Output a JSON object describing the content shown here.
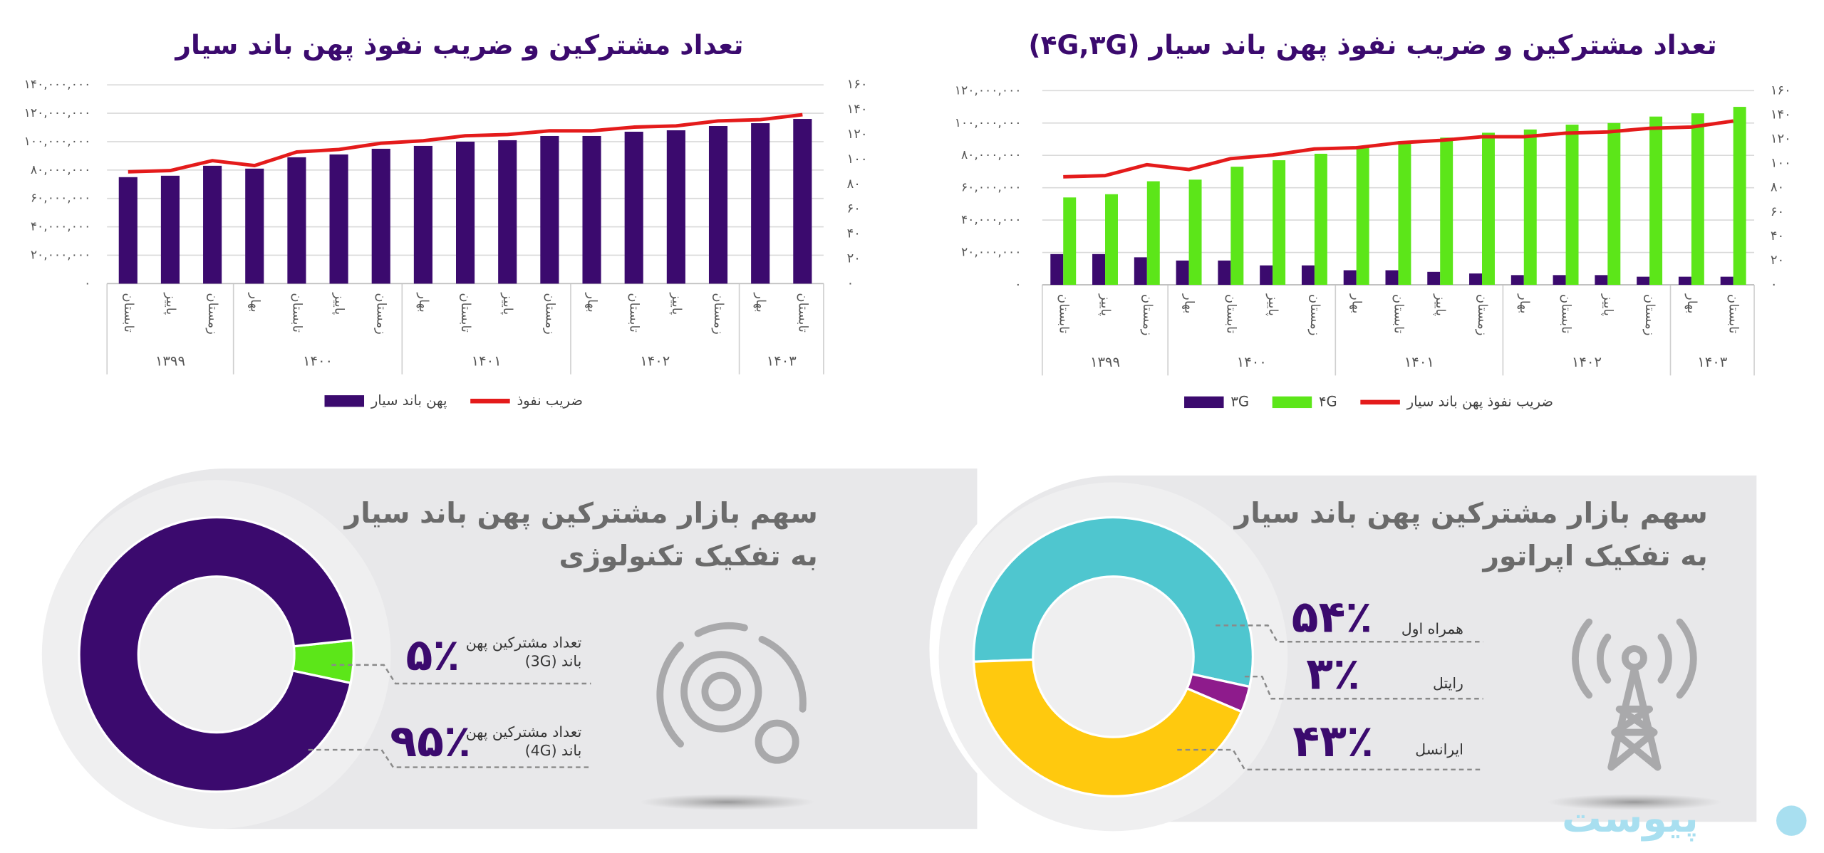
{
  "chart_data": [
    {
      "type": "bar",
      "title": "تعداد مشترکین و ضریب نفوذ پهن باند سیار",
      "categories": [
        "تابستان",
        "پاییز",
        "زمستان",
        "بهار",
        "تابستان",
        "پاییز",
        "زمستان",
        "بهار",
        "تابستان",
        "پاییز",
        "زمستان",
        "بهار",
        "تابستان",
        "پاییز",
        "زمستان",
        "بهار",
        "تابستان"
      ],
      "category_groups": [
        "۱۳۹۹",
        "۱۳۹۹",
        "۱۳۹۹",
        "۱۴۰۰",
        "۱۴۰۰",
        "۱۴۰۰",
        "۱۴۰۰",
        "۱۴۰۱",
        "۱۴۰۱",
        "۱۴۰۱",
        "۱۴۰۱",
        "۱۴۰۲",
        "۱۴۰۲",
        "۱۴۰۲",
        "۱۴۰۲",
        "۱۴۰۳",
        "۱۴۰۳"
      ],
      "series": [
        {
          "name": "پهن باند سیار",
          "color": "#3b0a6e",
          "values": [
            75000000,
            76000000,
            83000000,
            81000000,
            89000000,
            91000000,
            95000000,
            97000000,
            100000000,
            101000000,
            104000000,
            104000000,
            107000000,
            108000000,
            111000000,
            113000000,
            116000000
          ]
        },
        {
          "name": "ضریب نفوذ",
          "color": "#e41b1b",
          "axis": "y2",
          "values": [
            90,
            91,
            99,
            95,
            106,
            108,
            113,
            115,
            119,
            120,
            123,
            123,
            126,
            127,
            131,
            132,
            136
          ]
        }
      ],
      "ylim": [
        0,
        140000000
      ],
      "yticks": [
        {
          "value": 0,
          "label": "۰"
        },
        {
          "value": 20000000,
          "label": "۲۰,۰۰۰,۰۰۰"
        },
        {
          "value": 40000000,
          "label": "۴۰,۰۰۰,۰۰۰"
        },
        {
          "value": 60000000,
          "label": "۶۰,۰۰۰,۰۰۰"
        },
        {
          "value": 80000000,
          "label": "۸۰,۰۰۰,۰۰۰"
        },
        {
          "value": 100000000,
          "label": "۱۰۰,۰۰۰,۰۰۰"
        },
        {
          "value": 120000000,
          "label": "۱۲۰,۰۰۰,۰۰۰"
        },
        {
          "value": 140000000,
          "label": "۱۴۰,۰۰۰,۰۰۰"
        }
      ],
      "y2lim": [
        0,
        160
      ],
      "y2ticks": [
        {
          "value": 0,
          "label": "۰"
        },
        {
          "value": 20,
          "label": "۲۰"
        },
        {
          "value": 40,
          "label": "۴۰"
        },
        {
          "value": 60,
          "label": "۶۰"
        },
        {
          "value": 80,
          "label": "۸۰"
        },
        {
          "value": 100,
          "label": "۱۰۰"
        },
        {
          "value": 120,
          "label": "۱۲۰"
        },
        {
          "value": 140,
          "label": "۱۴۰"
        },
        {
          "value": 160,
          "label": "۱۶۰"
        }
      ],
      "grid": true,
      "legend": "bottom"
    },
    {
      "type": "bar",
      "title": "تعداد مشترکین و ضریب نفوذ پهن باند سیار (۴G,۳G)",
      "categories": [
        "تابستان",
        "پاییز",
        "زمستان",
        "بهار",
        "تابستان",
        "پاییز",
        "زمستان",
        "بهار",
        "تابستان",
        "پاییز",
        "زمستان",
        "بهار",
        "تابستان",
        "پاییز",
        "زمستان",
        "بهار",
        "تابستان"
      ],
      "category_groups": [
        "۱۳۹۹",
        "۱۳۹۹",
        "۱۳۹۹",
        "۱۴۰۰",
        "۱۴۰۰",
        "۱۴۰۰",
        "۱۴۰۰",
        "۱۴۰۱",
        "۱۴۰۱",
        "۱۴۰۱",
        "۱۴۰۱",
        "۱۴۰۲",
        "۱۴۰۲",
        "۱۴۰۲",
        "۱۴۰۲",
        "۱۴۰۳",
        "۱۴۰۳"
      ],
      "series": [
        {
          "name": "۳G",
          "color": "#3b0a6e",
          "values": [
            19000000,
            19000000,
            17000000,
            15000000,
            15000000,
            12000000,
            12000000,
            9000000,
            9000000,
            8000000,
            7000000,
            6000000,
            6000000,
            6000000,
            5000000,
            5000000,
            5000000
          ]
        },
        {
          "name": "۴G",
          "color": "#5ce619",
          "values": [
            54000000,
            56000000,
            64000000,
            65000000,
            73000000,
            77000000,
            81000000,
            85000000,
            88000000,
            91000000,
            94000000,
            96000000,
            99000000,
            100000000,
            104000000,
            106000000,
            110000000
          ]
        },
        {
          "name": "ضریب نفوذ پهن باند سیار",
          "color": "#e41b1b",
          "axis": "y2",
          "values": [
            89,
            90,
            99,
            95,
            104,
            107,
            112,
            113,
            117,
            119,
            122,
            122,
            125,
            126,
            129,
            130,
            135
          ]
        }
      ],
      "ylim": [
        0,
        120000000
      ],
      "yticks": [
        {
          "value": 0,
          "label": "۰"
        },
        {
          "value": 20000000,
          "label": "۲۰,۰۰۰,۰۰۰"
        },
        {
          "value": 40000000,
          "label": "۴۰,۰۰۰,۰۰۰"
        },
        {
          "value": 60000000,
          "label": "۶۰,۰۰۰,۰۰۰"
        },
        {
          "value": 80000000,
          "label": "۸۰,۰۰۰,۰۰۰"
        },
        {
          "value": 100000000,
          "label": "۱۰۰,۰۰۰,۰۰۰"
        },
        {
          "value": 120000000,
          "label": "۱۲۰,۰۰۰,۰۰۰"
        }
      ],
      "y2lim": [
        0,
        160
      ],
      "y2ticks": [
        {
          "value": 0,
          "label": "۰"
        },
        {
          "value": 20,
          "label": "۲۰"
        },
        {
          "value": 40,
          "label": "۴۰"
        },
        {
          "value": 60,
          "label": "۶۰"
        },
        {
          "value": 80,
          "label": "۸۰"
        },
        {
          "value": 100,
          "label": "۱۰۰"
        },
        {
          "value": 120,
          "label": "۱۲۰"
        },
        {
          "value": 140,
          "label": "۱۴۰"
        },
        {
          "value": 160,
          "label": "۱۶۰"
        }
      ],
      "grid": true,
      "legend": "bottom"
    },
    {
      "type": "donut",
      "title": "سهم بازار مشترکین پهن باند سیار",
      "subtitle": "به تفکیک تکنولوژی",
      "categories": [
        "تعداد مشترکین پهن باند (3G)",
        "تعداد مشترکین پهن باند (4G)"
      ],
      "values": [
        5,
        95
      ],
      "value_labels": [
        "۵٪",
        "۹۵٪"
      ],
      "colors": [
        "#5ce619",
        "#3b0a6e"
      ]
    },
    {
      "type": "donut",
      "title": "سهم بازار مشترکین پهن باند سیار",
      "subtitle": "به تفکیک اپراتور",
      "categories": [
        "همراه اول",
        "رایتل",
        "ایرانسل"
      ],
      "values": [
        54,
        3,
        43
      ],
      "value_labels": [
        "۵۴٪",
        "۳٪",
        "۴۳٪"
      ],
      "colors": [
        "#4fc6cf",
        "#8e1b8c",
        "#ffc90e"
      ]
    }
  ],
  "watermark": "پیوست"
}
